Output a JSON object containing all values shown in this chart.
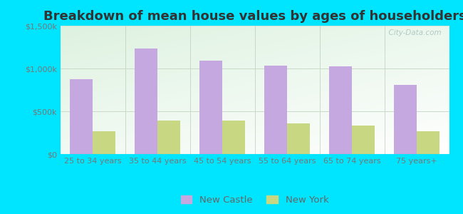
{
  "title": "Breakdown of mean house values by ages of householders",
  "categories": [
    "25 to 34 years",
    "35 to 44 years",
    "45 to 54 years",
    "55 to 64 years",
    "65 to 74 years",
    "75 years+"
  ],
  "new_castle": [
    875000,
    1230000,
    1090000,
    1030000,
    1025000,
    810000
  ],
  "new_york": [
    270000,
    390000,
    390000,
    360000,
    330000,
    270000
  ],
  "new_castle_color": "#c4a8df",
  "new_york_color": "#c8d882",
  "background_color": "#00e5ff",
  "ylabel_ticks": [
    "$0",
    "$500k",
    "$1,000k",
    "$1,500k"
  ],
  "ytick_values": [
    0,
    500000,
    1000000,
    1500000
  ],
  "ylim": [
    0,
    1500000
  ],
  "title_fontsize": 13,
  "tick_fontsize": 8,
  "legend_fontsize": 9.5,
  "bar_width": 0.35,
  "watermark": "  City-Data.com"
}
